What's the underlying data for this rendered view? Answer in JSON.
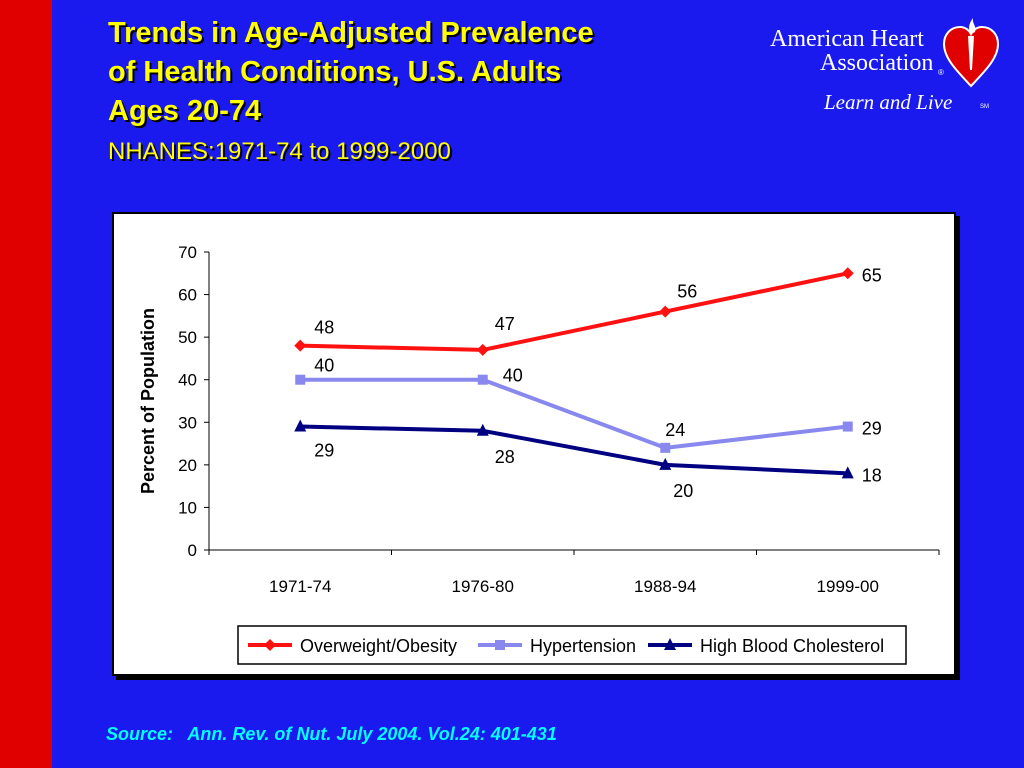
{
  "slide": {
    "title_lines": [
      "Trends in Age-Adjusted Prevalence",
      "of Health Conditions, U.S. Adults",
      "Ages 20-74"
    ],
    "subtitle": "NHANES:1971-74 to 1999-2000",
    "source": "Source:   Ann. Rev. of Nut. July 2004. Vol.24: 401-431"
  },
  "logo": {
    "line1": "American Heart",
    "line2": "Association",
    "registered": "®",
    "tagline": "Learn and Live",
    "service_mark": "SM",
    "icon": "heart-torch-icon"
  },
  "colors": {
    "background": "#1a1aee",
    "left_bar": "#e00000",
    "title": "#ffff00",
    "source": "#00ffff"
  },
  "chart_data": {
    "type": "line",
    "title": "",
    "xlabel": "",
    "ylabel": "Percent of Population",
    "categories": [
      "1971-74",
      "1976-80",
      "1988-94",
      "1999-00"
    ],
    "ylim": [
      0,
      70
    ],
    "yticks": [
      0,
      10,
      20,
      30,
      40,
      50,
      60,
      70
    ],
    "grid": false,
    "legend_position": "bottom",
    "series": [
      {
        "name": "Overweight/Obesity",
        "values": [
          48,
          47,
          56,
          65
        ],
        "labels": [
          "48",
          "47",
          "56",
          "65"
        ],
        "color": "#ff1111",
        "marker": "diamond"
      },
      {
        "name": "Hypertension",
        "values": [
          40,
          40,
          24,
          29
        ],
        "labels": [
          "40",
          "40",
          "24",
          "29"
        ],
        "color": "#8888ee",
        "marker": "square"
      },
      {
        "name": "High Blood Cholesterol",
        "values": [
          29,
          28,
          20,
          18
        ],
        "labels": [
          "29",
          "28",
          "20",
          "18"
        ],
        "color": "#000080",
        "marker": "triangle"
      }
    ]
  }
}
